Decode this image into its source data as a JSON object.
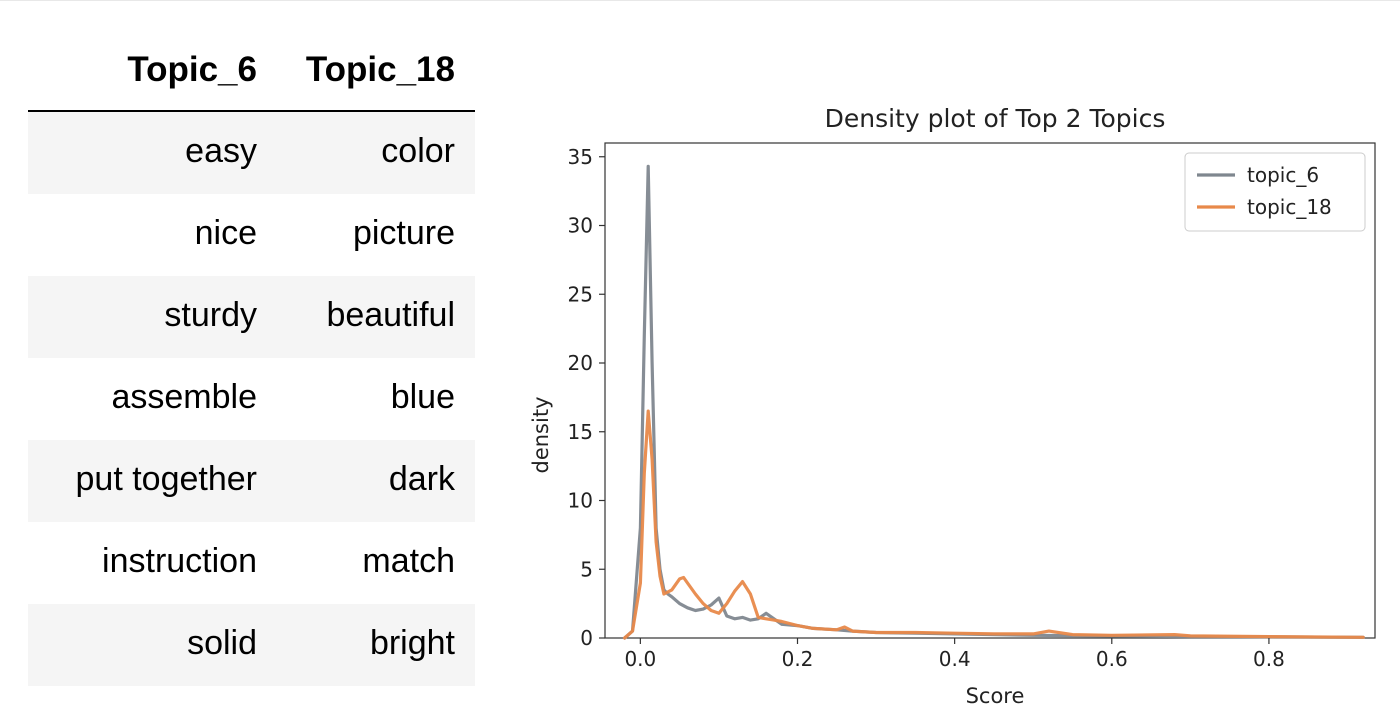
{
  "table": {
    "columns": [
      "Topic_6",
      "Topic_18"
    ],
    "rows": [
      [
        "easy",
        "color"
      ],
      [
        "nice",
        "picture"
      ],
      [
        "sturdy",
        "beautiful"
      ],
      [
        "assemble",
        "blue"
      ],
      [
        "put together",
        "dark"
      ],
      [
        "instruction",
        "match"
      ],
      [
        "solid",
        "bright"
      ]
    ]
  },
  "chart_data": {
    "type": "line",
    "title": "Density plot of Top 2 Topics",
    "xlabel": "Score",
    "ylabel": "density",
    "xlim": [
      -0.045,
      0.935
    ],
    "ylim": [
      0,
      36
    ],
    "xticks": [
      "0.0",
      "0.2",
      "0.4",
      "0.6",
      "0.8"
    ],
    "yticks": [
      "0",
      "5",
      "10",
      "15",
      "20",
      "25",
      "30",
      "35"
    ],
    "legend_position": "top-right",
    "grid": false,
    "series": [
      {
        "name": "topic_6",
        "color": "#7f878f",
        "x": [
          -0.02,
          -0.01,
          0.0,
          0.005,
          0.01,
          0.015,
          0.02,
          0.025,
          0.03,
          0.035,
          0.04,
          0.05,
          0.06,
          0.07,
          0.08,
          0.09,
          0.1,
          0.11,
          0.12,
          0.13,
          0.14,
          0.15,
          0.16,
          0.18,
          0.2,
          0.22,
          0.25,
          0.27,
          0.3,
          0.35,
          0.4,
          0.5,
          0.6,
          0.7,
          0.8,
          0.92
        ],
        "y": [
          0,
          0.5,
          8,
          22,
          34.3,
          20,
          8,
          5,
          3.5,
          3.2,
          3.0,
          2.5,
          2.2,
          2.0,
          2.1,
          2.4,
          2.9,
          1.6,
          1.4,
          1.5,
          1.3,
          1.4,
          1.8,
          1.0,
          0.9,
          0.7,
          0.6,
          0.5,
          0.4,
          0.35,
          0.3,
          0.2,
          0.15,
          0.1,
          0.08,
          0.05
        ]
      },
      {
        "name": "topic_18",
        "color": "#e8894a",
        "x": [
          -0.02,
          -0.01,
          0.0,
          0.005,
          0.01,
          0.015,
          0.02,
          0.025,
          0.03,
          0.04,
          0.05,
          0.055,
          0.06,
          0.07,
          0.08,
          0.09,
          0.1,
          0.11,
          0.12,
          0.13,
          0.14,
          0.15,
          0.16,
          0.17,
          0.18,
          0.2,
          0.22,
          0.25,
          0.26,
          0.27,
          0.3,
          0.35,
          0.4,
          0.45,
          0.5,
          0.52,
          0.55,
          0.6,
          0.68,
          0.7,
          0.8,
          0.92
        ],
        "y": [
          0,
          0.5,
          4,
          12,
          16.5,
          13,
          7,
          4.5,
          3.2,
          3.5,
          4.3,
          4.4,
          4.0,
          3.2,
          2.5,
          2.0,
          1.8,
          2.5,
          3.4,
          4.1,
          3.2,
          1.5,
          1.4,
          1.3,
          1.2,
          0.9,
          0.7,
          0.6,
          0.8,
          0.5,
          0.4,
          0.4,
          0.35,
          0.3,
          0.3,
          0.5,
          0.25,
          0.2,
          0.25,
          0.15,
          0.1,
          0.05
        ]
      }
    ]
  }
}
